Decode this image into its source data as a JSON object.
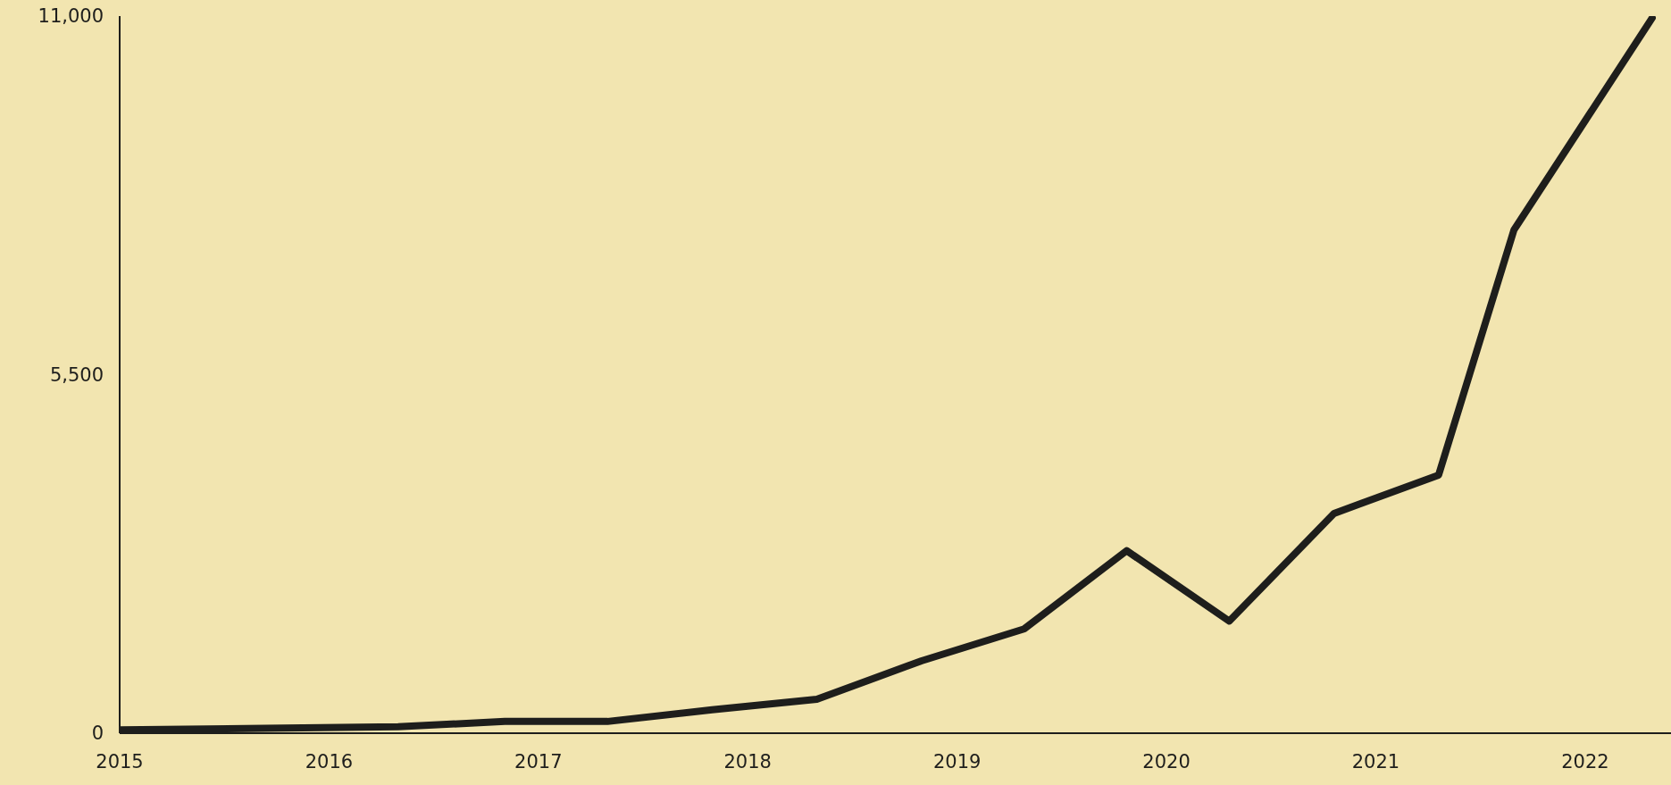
{
  "chart_data": {
    "type": "line",
    "x": [
      2015.0,
      2016.33,
      2016.84,
      2017.33,
      2017.83,
      2018.33,
      2018.83,
      2019.32,
      2019.81,
      2020.3,
      2020.8,
      2021.3,
      2021.66,
      2022.32
    ],
    "series": [
      {
        "color": "#1e1e1c",
        "values": [
          50,
          100,
          180,
          180,
          360,
          520,
          1110,
          1600,
          2800,
          1720,
          3370,
          3960,
          7720,
          10970
        ]
      }
    ],
    "xlim": [
      2015,
      2022.41
    ],
    "xticks": [
      2015,
      2016,
      2017,
      2018,
      2019,
      2020,
      2021,
      2022
    ],
    "ylim": [
      0,
      11000
    ],
    "yticks": [
      0,
      {
        "value": 5500,
        "label": "5,500"
      },
      {
        "value": 11000,
        "label": "11,000"
      }
    ],
    "grid": false,
    "legend": false,
    "marker": "none",
    "line_style": "solid"
  }
}
